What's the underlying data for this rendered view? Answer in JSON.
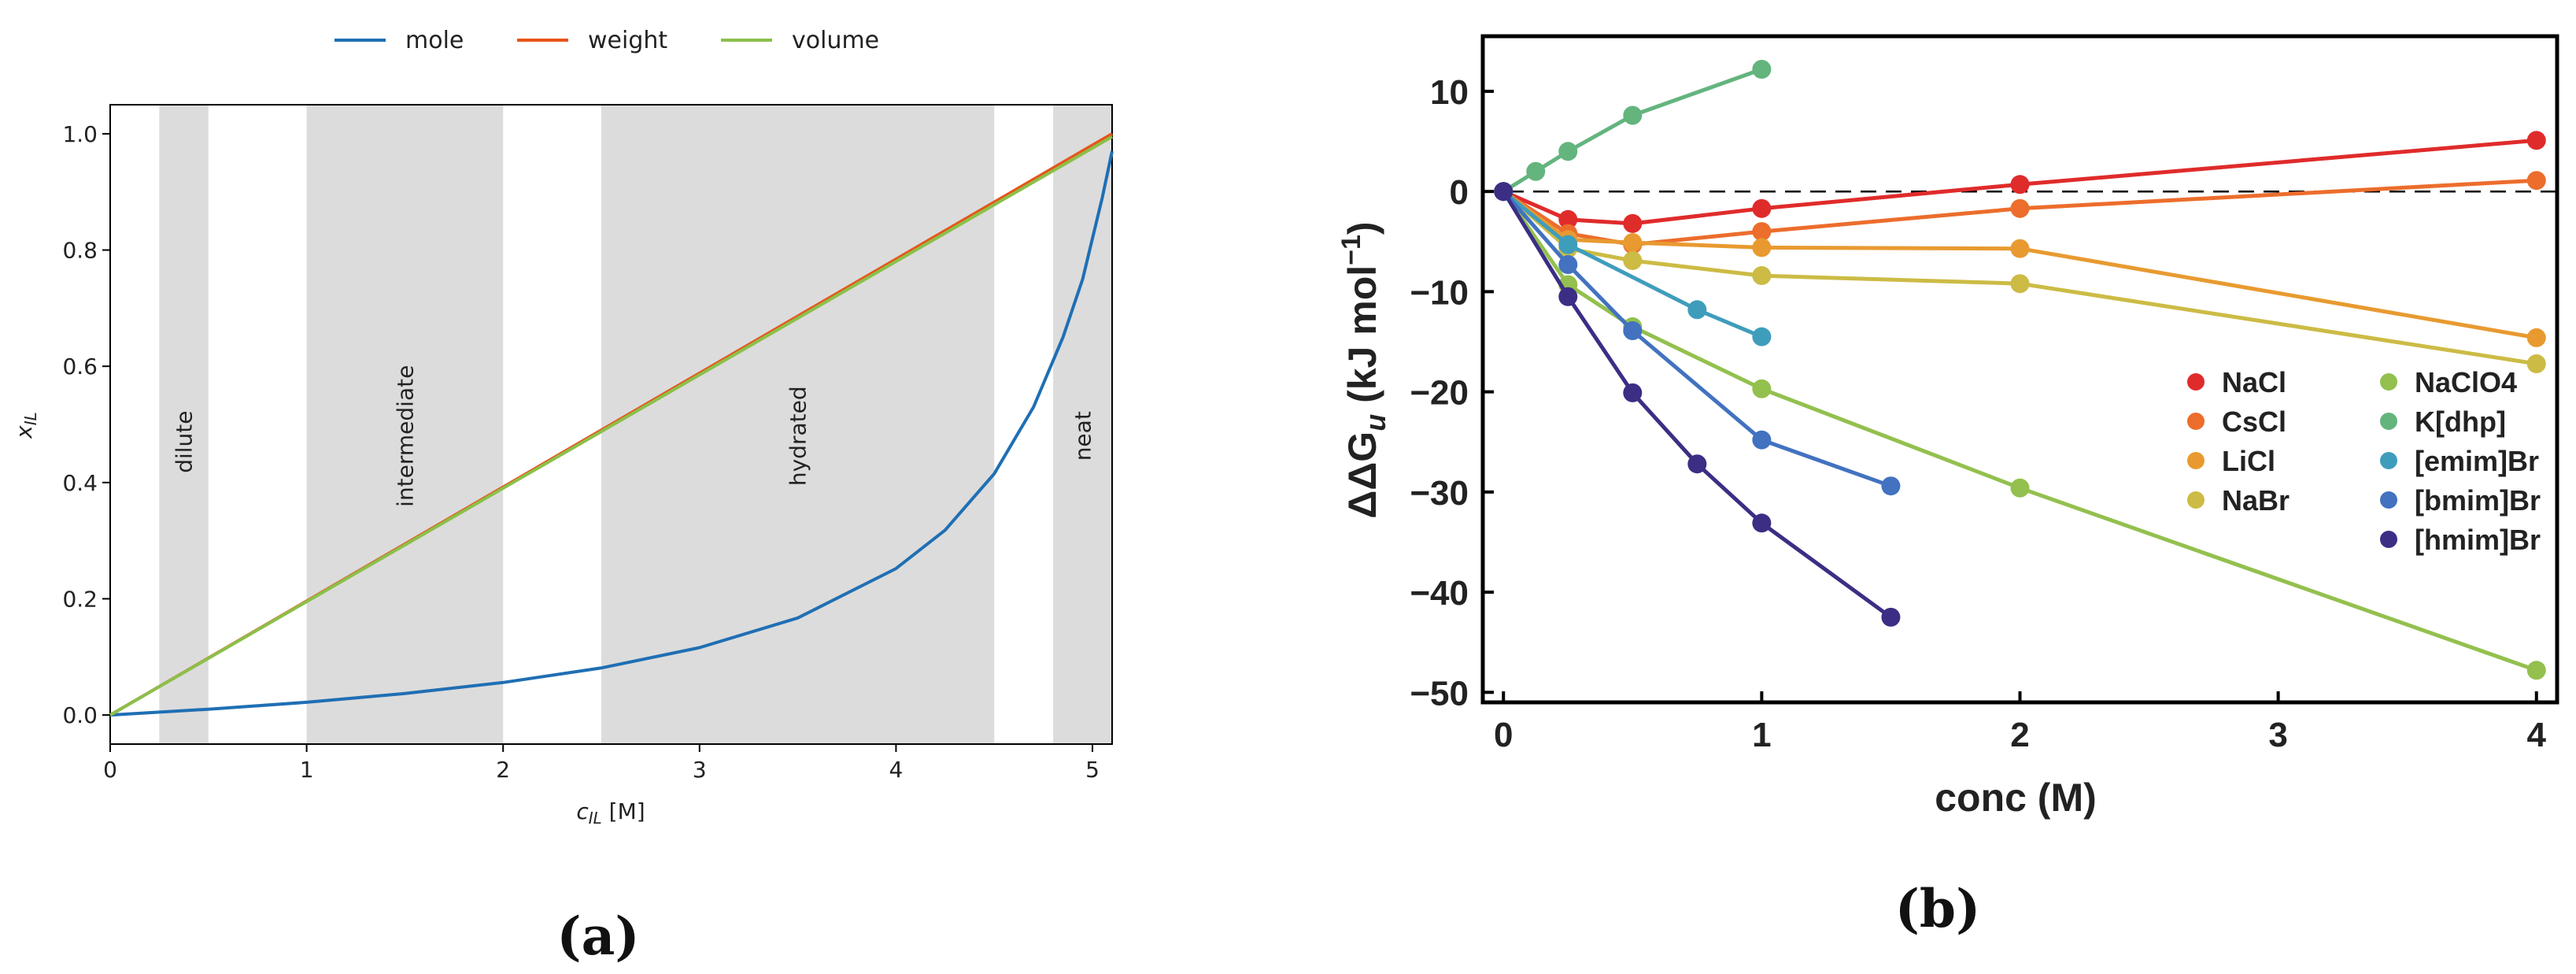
{
  "chart_data": [
    {
      "panel": "(a)",
      "type": "line",
      "title": "",
      "xlabel_var": "c",
      "xlabel_sub": "IL",
      "xlabel_unit": " [M]",
      "ylabel_var": "x",
      "ylabel_sub": "IL",
      "xlim": [
        0,
        5.1
      ],
      "ylim": [
        -0.05,
        1.05
      ],
      "xticks": [
        0,
        1,
        2,
        3,
        4,
        5
      ],
      "yticks": [
        0.0,
        0.2,
        0.4,
        0.6,
        0.8,
        1.0
      ],
      "legend_position": "top-center (outside)",
      "series": [
        {
          "name": "mole",
          "color": "#1f6fb4",
          "x": [
            0,
            0.5,
            1.0,
            1.5,
            2.0,
            2.5,
            3.0,
            3.5,
            4.0,
            4.25,
            4.5,
            4.7,
            4.85,
            4.95,
            5.05,
            5.1
          ],
          "values": [
            0.0,
            0.01,
            0.022,
            0.037,
            0.056,
            0.081,
            0.116,
            0.167,
            0.252,
            0.318,
            0.415,
            0.53,
            0.65,
            0.75,
            0.89,
            0.97
          ]
        },
        {
          "name": "weight",
          "color": "#e8541a",
          "x": [
            0,
            5.1
          ],
          "values": [
            0.0,
            1.0
          ]
        },
        {
          "name": "volume",
          "color": "#8bc04a",
          "x": [
            0,
            5.1
          ],
          "values": [
            0.0,
            0.995
          ]
        }
      ],
      "regions": [
        {
          "label": "dilute",
          "from": 0.25,
          "to": 0.5,
          "label_y": 0.47
        },
        {
          "label": "intermediate",
          "from": 1.0,
          "to": 2.0,
          "label_y": 0.48
        },
        {
          "label": "hydrated",
          "from": 2.5,
          "to": 4.5,
          "label_y": 0.48
        },
        {
          "label": "neat",
          "from": 4.8,
          "to": 5.1,
          "label_y": 0.48
        }
      ]
    },
    {
      "panel": "(b)",
      "type": "line",
      "title": "",
      "xlabel": "conc (M)",
      "ylabel": "ΔΔG",
      "ylabel_sub": "u",
      "ylabel_unit": " (kJ mol",
      "ylabel_sup": "−1",
      "ylabel_close": ")",
      "xlim": [
        -0.08,
        4.08
      ],
      "ylim": [
        -51,
        15.5
      ],
      "xticks": [
        0,
        1,
        2,
        3,
        4
      ],
      "yticks": [
        10,
        0,
        -10,
        -20,
        -30,
        -40,
        -50
      ],
      "reference_line": 0,
      "legend_position": "right-middle (inside)",
      "series": [
        {
          "name": "NaCl",
          "color": "#e02b2b",
          "x": [
            0,
            0.25,
            0.5,
            1,
            2,
            4
          ],
          "values": [
            0,
            -2.8,
            -3.2,
            -1.7,
            0.7,
            5.1
          ]
        },
        {
          "name": "CsCl",
          "color": "#ec6d2c",
          "x": [
            0,
            0.25,
            0.5,
            1,
            2,
            4
          ],
          "values": [
            0,
            -4.2,
            -5.3,
            -4.0,
            -1.7,
            1.1
          ]
        },
        {
          "name": "LiCl",
          "color": "#e89a30",
          "x": [
            0,
            0.25,
            0.5,
            1,
            2,
            4
          ],
          "values": [
            0,
            -4.8,
            -5.1,
            -5.6,
            -5.7,
            -14.6
          ]
        },
        {
          "name": "NaBr",
          "color": "#ccbb45",
          "x": [
            0,
            0.25,
            0.5,
            1,
            2,
            4
          ],
          "values": [
            0,
            -5.7,
            -6.9,
            -8.4,
            -9.2,
            -17.2
          ]
        },
        {
          "name": "NaClO4",
          "color": "#93c04e",
          "x": [
            0,
            0.25,
            0.5,
            1,
            2,
            4
          ],
          "values": [
            0,
            -9.3,
            -13.5,
            -19.7,
            -29.6,
            -47.8
          ]
        },
        {
          "name": "K[dhp]",
          "color": "#64b47e",
          "x": [
            0,
            0.125,
            0.25,
            0.5,
            1
          ],
          "values": [
            0,
            2.0,
            4.0,
            7.6,
            12.2
          ]
        },
        {
          "name": "[emim]Br",
          "color": "#3f9dbc",
          "x": [
            0,
            0.25,
            0.75,
            1
          ],
          "values": [
            0,
            -5.3,
            -11.8,
            -14.5
          ]
        },
        {
          "name": "[bmim]Br",
          "color": "#4272c0",
          "x": [
            0,
            0.25,
            0.5,
            1,
            1.5
          ],
          "values": [
            0,
            -7.3,
            -13.9,
            -24.8,
            -29.4
          ]
        },
        {
          "name": "[hmim]Br",
          "color": "#3b2e84",
          "x": [
            0,
            0.25,
            0.5,
            0.75,
            1,
            1.5
          ],
          "values": [
            0,
            -10.5,
            -20.1,
            -27.2,
            -33.1,
            -42.5
          ]
        }
      ]
    }
  ],
  "labels": {
    "panel_a": "(a)",
    "panel_b": "(b)"
  }
}
